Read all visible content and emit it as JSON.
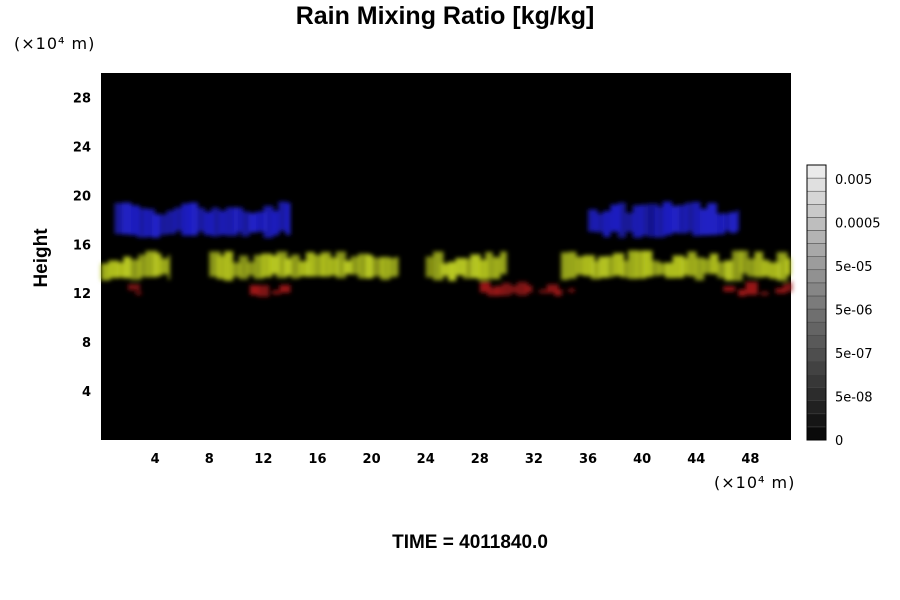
{
  "chart_data": {
    "type": "heatmap",
    "title": "Rain Mixing Ratio [kg/kg]",
    "ylabel": "Height",
    "x_unit_note": "(×10⁴ m)",
    "y_unit_note": "(×10⁴ m)",
    "xlim": [
      0,
      51
    ],
    "ylim": [
      0,
      30
    ],
    "x_ticks": [
      "4",
      "8",
      "12",
      "16",
      "20",
      "24",
      "28",
      "32",
      "36",
      "40",
      "44",
      "48"
    ],
    "y_ticks": [
      "4",
      "8",
      "12",
      "16",
      "20",
      "24",
      "28"
    ],
    "background_color": "#000000",
    "colorbar": {
      "tick_labels": [
        "0.005",
        "0.0005",
        "5e-05",
        "5e-06",
        "5e-07",
        "5e-08",
        "0"
      ],
      "levels": 21
    },
    "features": [
      {
        "color": "#2020c8",
        "band": [
          16.5,
          19.5
        ],
        "x_ranges": [
          [
            1,
            14
          ],
          [
            36,
            47
          ]
        ],
        "note": "blue upper layer"
      },
      {
        "color": "#b8c820",
        "band": [
          13,
          15.5
        ],
        "x_ranges": [
          [
            0,
            5
          ],
          [
            8,
            22
          ],
          [
            24,
            30
          ],
          [
            34,
            51
          ]
        ],
        "note": "yellow-green middle layer"
      },
      {
        "color": "#a01818",
        "band": [
          11.7,
          13
        ],
        "x_ranges": [
          [
            2,
            3
          ],
          [
            11,
            14
          ],
          [
            28,
            35
          ],
          [
            46,
            51
          ]
        ],
        "note": "red lower layer"
      }
    ]
  },
  "annotation": {
    "time_text": "TIME = 4011840.0"
  }
}
